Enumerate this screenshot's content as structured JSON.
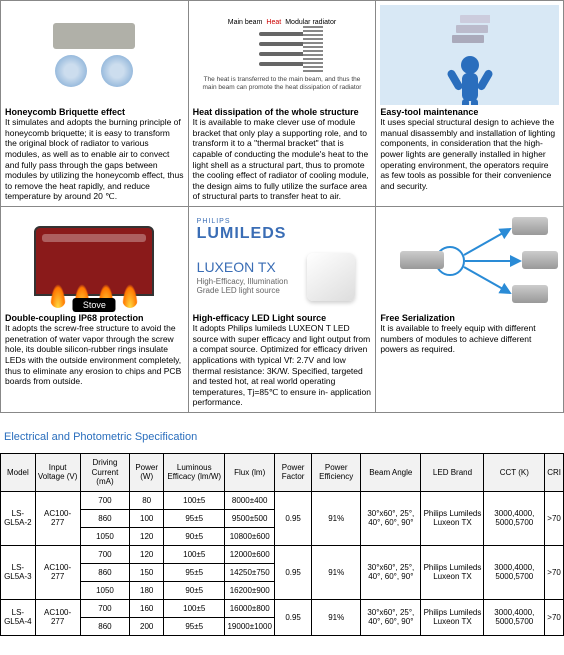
{
  "features": [
    {
      "title": "Honeycomb Briquette effect",
      "desc": "It simulates and adopts the burning principle of honeycomb briquette; it is easy to transform the original block of radiator to various modules, as well as to enable air to convect and fully pass through the gaps between modules by utilizing the honeycomb effect, thus to remove the heat rapidly, and reduce temperature by around 20 ℃."
    },
    {
      "title": "Heat dissipation of the whole structure",
      "desc": "It is available to make clever use of module bracket that only play a supporting role, and to transform it to a \"thermal bracket\" that is capable of conducting the module's heat to the light shell as a structural part, thus to promote the cooling effect of radiator of cooling module, the design aims to fully utilize the surface area of structural parts to transfer heat to air."
    },
    {
      "title": "Easy-tool maintenance",
      "desc": "It uses special structural design to achieve the manual disassembly and installation of lighting components, in consideration that the high-power lights are generally installed in higher operating environment, the operators require as few tools as possible for their convenience and security."
    },
    {
      "title": "Double-coupling IP68 protection",
      "desc": "It adopts the screw-free structure to avoid the penetration of water vapor through the screw hole, its double silicon-rubber rings insulate LEDs with the outside environment completely, thus to eliminate any erosion to chips and PCB boards from outside."
    },
    {
      "title": "High-efficacy LED Light source",
      "desc": "It adopts Philips lumileds LUXEON T LED source with super efficacy and light output from a compat source. Optimized for efficacy driven applications with typical Vf: 2.7V and low thermal resistance: 3K/W. Specified, targeted and tested hot, at real world operating temperatures, Tj=85℃ to ensure in- application performance."
    },
    {
      "title": "Free Serialization",
      "desc": "It is available to freely equip with different numbers of modules to achieve different powers as required."
    }
  ],
  "lumileds": {
    "brand": "PHILIPS",
    "name": "LUMILEDS",
    "model": "LUXEON TX",
    "sub1": "High-Efficacy, Illumination",
    "sub2": "Grade LED light source"
  },
  "radiator_caption": "The heat is transferred to the main beam, and thus the main beam can promote the heat dissipation of radiator",
  "radiator_labels": {
    "main": "Main beam",
    "heat": "Heat",
    "mod": "Modular radiator"
  },
  "stove_label": "Stove",
  "spec_title": "Electrical and Photometric Specification",
  "spec_headers": [
    "Model",
    "Input Voltage (V)",
    "Driving Current (mA)",
    "Power (W)",
    "Luminous Efficacy (lm/W)",
    "Flux (lm)",
    "Power Factor",
    "Power Efficiency",
    "Beam Angle",
    "LED Brand",
    "CCT (K)",
    "CRI"
  ],
  "spec_shared": {
    "voltage": "AC100-277",
    "pf": "0.95",
    "eff": "91%",
    "beam": "30°x60°, 25°, 40°, 60°, 90°",
    "brand": "Philips Lumileds Luxeon TX",
    "cct": "3000,4000, 5000,5700",
    "cri": ">70"
  },
  "spec_rows": [
    {
      "model": "LS-GL5A-2",
      "r": [
        [
          "700",
          "80",
          "100±5",
          "8000±400"
        ],
        [
          "860",
          "100",
          "95±5",
          "9500±500"
        ],
        [
          "1050",
          "120",
          "90±5",
          "10800±600"
        ]
      ]
    },
    {
      "model": "LS-GL5A-3",
      "r": [
        [
          "700",
          "120",
          "100±5",
          "12000±600"
        ],
        [
          "860",
          "150",
          "95±5",
          "14250±750"
        ],
        [
          "1050",
          "180",
          "90±5",
          "16200±900"
        ]
      ]
    },
    {
      "model": "LS-GL5A-4",
      "r": [
        [
          "700",
          "160",
          "100±5",
          "16000±800"
        ],
        [
          "860",
          "200",
          "95±5",
          "19000±1000"
        ]
      ]
    }
  ]
}
